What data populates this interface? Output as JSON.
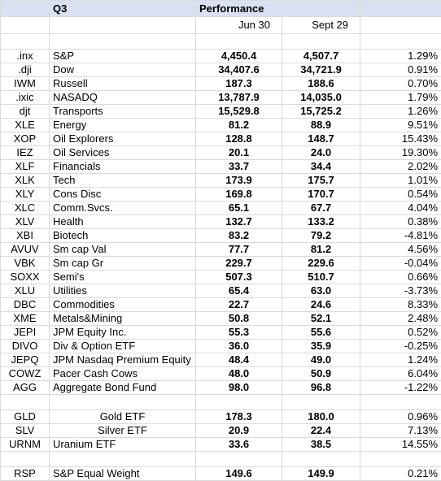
{
  "header": {
    "quarter": "Q3",
    "performance": "Performance",
    "date1": "Jun 30",
    "date2": "Sept 29"
  },
  "rows": [
    {
      "ticker": ".inx",
      "name": "S&P",
      "jun": "4,450.4",
      "sep": "4,507.7",
      "pct": "1.29%",
      "neg": false
    },
    {
      "ticker": ".dji",
      "name": "Dow",
      "jun": "34,407.6",
      "sep": "34,721.9",
      "pct": "0.91%",
      "neg": false
    },
    {
      "ticker": "IWM",
      "name": "Russell",
      "jun": "187.3",
      "sep": "188.6",
      "pct": "0.70%",
      "neg": false
    },
    {
      "ticker": ".ixic",
      "name": "NASADQ",
      "jun": "13,787.9",
      "sep": "14,035.0",
      "pct": "1.79%",
      "neg": false
    },
    {
      "ticker": "djt",
      "name": "Transports",
      "jun": "15,529.8",
      "sep": "15,725.2",
      "pct": "1.26%",
      "neg": false
    },
    {
      "ticker": "XLE",
      "name": "Energy",
      "jun": "81.2",
      "sep": "88.9",
      "pct": "9.51%",
      "neg": false
    },
    {
      "ticker": "XOP",
      "name": "Oil Explorers",
      "jun": "128.8",
      "sep": "148.7",
      "pct": "15.43%",
      "neg": false
    },
    {
      "ticker": "IEZ",
      "name": "Oil Services",
      "jun": "20.1",
      "sep": "24.0",
      "pct": "19.30%",
      "neg": false
    },
    {
      "ticker": "XLF",
      "name": "Financials",
      "jun": "33.7",
      "sep": "34.4",
      "pct": "2.02%",
      "neg": false
    },
    {
      "ticker": "XLK",
      "name": "Tech",
      "jun": "173.9",
      "sep": "175.7",
      "pct": "1.01%",
      "neg": false
    },
    {
      "ticker": "XLY",
      "name": "Cons Disc",
      "jun": "169.8",
      "sep": "170.7",
      "pct": "0.54%",
      "neg": false
    },
    {
      "ticker": "XLC",
      "name": "Comm.Svcs.",
      "jun": "65.1",
      "sep": "67.7",
      "pct": "4.04%",
      "neg": false
    },
    {
      "ticker": "XLV",
      "name": "Health",
      "jun": "132.7",
      "sep": "133.2",
      "pct": "0.38%",
      "neg": false
    },
    {
      "ticker": "XBI",
      "name": "Biotech",
      "jun": "83.2",
      "sep": "79.2",
      "pct": "-4.81%",
      "neg": true
    },
    {
      "ticker": "AVUV",
      "name": "Sm cap Val",
      "jun": "77.7",
      "sep": "81.2",
      "pct": "4.56%",
      "neg": false
    },
    {
      "ticker": "VBK",
      "name": "Sm cap Gr",
      "jun": "229.7",
      "sep": "229.6",
      "pct": "-0.04%",
      "neg": true
    },
    {
      "ticker": "SOXX",
      "name": "Semi's",
      "jun": "507.3",
      "sep": "510.7",
      "pct": "0.66%",
      "neg": false
    },
    {
      "ticker": "XLU",
      "name": "Utilities",
      "jun": "65.4",
      "sep": "63.0",
      "pct": "-3.73%",
      "neg": true
    },
    {
      "ticker": "DBC",
      "name": "Commodities",
      "jun": "22.7",
      "sep": "24.6",
      "pct": "8.33%",
      "neg": false
    },
    {
      "ticker": "XME",
      "name": "Metals&Mining",
      "jun": "50.8",
      "sep": "52.1",
      "pct": "2.48%",
      "neg": false
    },
    {
      "ticker": "JEPI",
      "name": "JPM Equity Inc.",
      "jun": "55.3",
      "sep": "55.6",
      "pct": "0.52%",
      "neg": false
    },
    {
      "ticker": "DIVO",
      "name": "Div & Option ETF",
      "jun": "36.0",
      "sep": "35.9",
      "pct": "-0.25%",
      "neg": true
    },
    {
      "ticker": "JEPQ",
      "name": "JPM Nasdaq Premium Equity",
      "jun": "48.4",
      "sep": "49.0",
      "pct": "1.24%",
      "neg": false
    },
    {
      "ticker": "COWZ",
      "name": "Pacer Cash Cows",
      "jun": "48.0",
      "sep": "50.9",
      "pct": "6.04%",
      "neg": false
    },
    {
      "ticker": "AGG",
      "name": "Aggregate Bond Fund",
      "jun": "98.0",
      "sep": "96.8",
      "pct": "-1.22%",
      "neg": true
    }
  ],
  "rows2": [
    {
      "ticker": "GLD",
      "name": "Gold ETF",
      "jun": "178.3",
      "sep": "180.0",
      "pct": "0.96%",
      "neg": false
    },
    {
      "ticker": "SLV",
      "name": "Silver ETF",
      "jun": "20.9",
      "sep": "22.4",
      "pct": "7.13%",
      "neg": false
    },
    {
      "ticker": "URNM",
      "name": "Uranium ETF",
      "jun": "33.6",
      "sep": "38.5",
      "pct": "14.55%",
      "neg": false
    }
  ],
  "rows3": [
    {
      "ticker": "RSP",
      "name": "S&P Equal Weight",
      "jun": "149.6",
      "sep": "149.9",
      "pct": "0.21%",
      "neg": false
    }
  ],
  "colors": {
    "header_fill": "#d9e1f2",
    "value_blue": "#2f2fd0",
    "negative_red": "#e03030",
    "gridline": "#dadada"
  }
}
